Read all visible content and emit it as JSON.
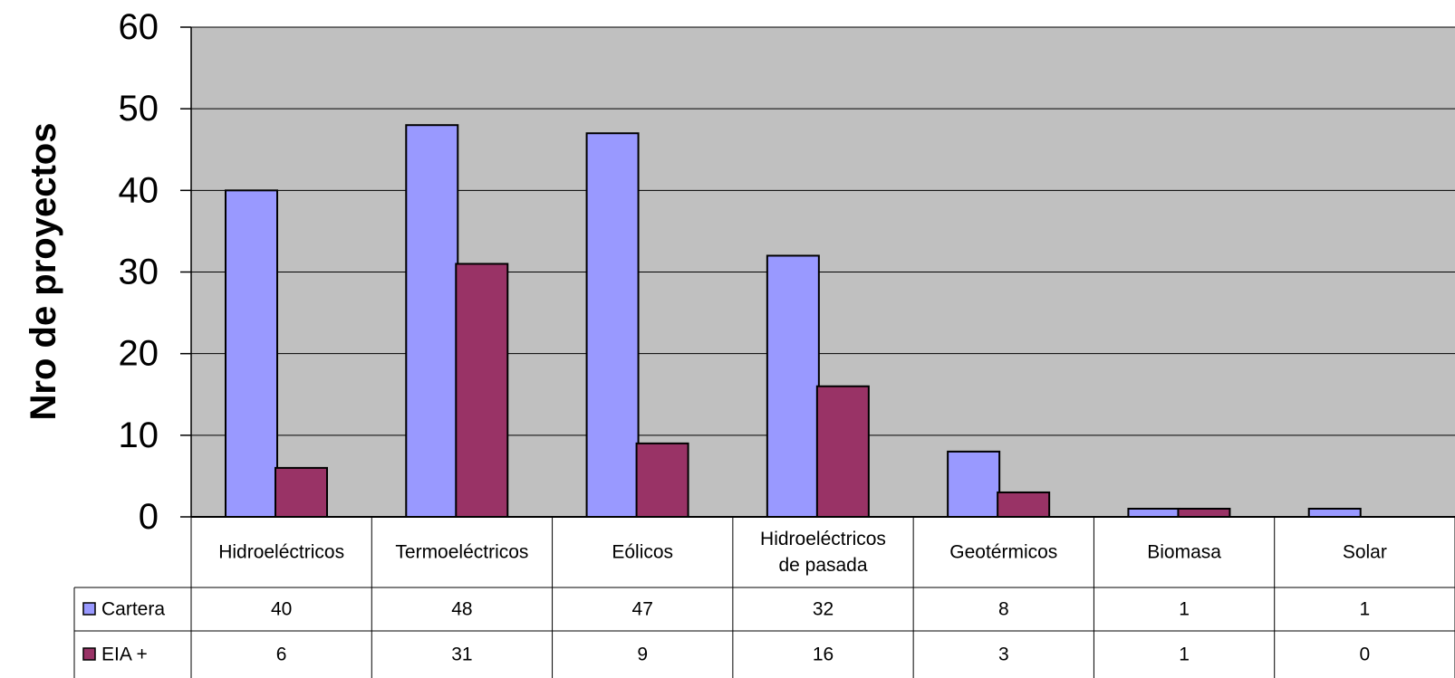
{
  "chart_data": {
    "type": "bar",
    "title": "",
    "xlabel": "",
    "ylabel": "Nro de proyectos",
    "ylim": [
      0,
      60
    ],
    "yticks": [
      0,
      10,
      20,
      30,
      40,
      50,
      60
    ],
    "grid": true,
    "categories": [
      [
        "Hidroeléctricos"
      ],
      [
        "Termoeléctricos"
      ],
      [
        "Eólicos"
      ],
      [
        "Hidroeléctricos",
        "de pasada"
      ],
      [
        "Geotérmicos"
      ],
      [
        "Biomasa"
      ],
      [
        "Solar"
      ]
    ],
    "series": [
      {
        "name": "Cartera",
        "color": "#9999ff",
        "values": [
          40,
          48,
          47,
          32,
          8,
          1,
          1
        ]
      },
      {
        "name": "EIA +",
        "color": "#993366",
        "values": [
          6,
          31,
          9,
          16,
          3,
          1,
          0
        ]
      }
    ],
    "legend": "data-table",
    "plot_background": "#c0c0c0"
  }
}
